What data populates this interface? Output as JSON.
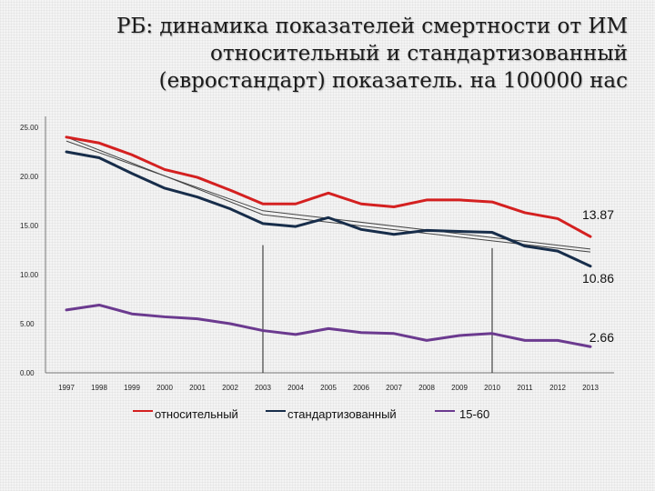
{
  "title_lines": [
    "РБ: динамика показателей смертности от ИМ",
    "относительный и стандартизованный",
    "(евростандарт) показатель. на 100000 нас"
  ],
  "chart_data": {
    "type": "line",
    "title": "РБ: динамика показателей смертности от ИМ относительный и стандартизованный (евростандарт) показатель. на 100000 нас",
    "xlabel": "",
    "ylabel": "",
    "ylim": [
      0,
      25
    ],
    "y_ticks": [
      "0.00",
      "5.00",
      "10.00",
      "15.00",
      "20.00",
      "25.00"
    ],
    "categories": [
      "1997",
      "1998",
      "1999",
      "2000",
      "2001",
      "2002",
      "2003",
      "2004",
      "2005",
      "2006",
      "2007",
      "2008",
      "2009",
      "2010",
      "2011",
      "2012",
      "2013"
    ],
    "series": [
      {
        "name": "относительный",
        "color": "#d42020",
        "values": [
          24.0,
          23.4,
          22.2,
          20.7,
          19.9,
          18.6,
          17.2,
          17.2,
          18.3,
          17.2,
          16.9,
          17.6,
          17.6,
          17.4,
          16.3,
          15.7,
          13.87
        ]
      },
      {
        "name": "стандартизованный",
        "color": "#172d4a",
        "values": [
          22.5,
          21.9,
          20.3,
          18.8,
          17.9,
          16.7,
          15.2,
          14.9,
          15.8,
          14.6,
          14.1,
          14.5,
          14.4,
          14.3,
          12.9,
          12.4,
          10.86
        ]
      },
      {
        "name": "15-60",
        "color": "#6b3a8f",
        "values": [
          6.4,
          6.9,
          6.0,
          5.7,
          5.5,
          5.0,
          4.3,
          3.9,
          4.5,
          4.1,
          4.0,
          3.3,
          3.8,
          4.0,
          3.3,
          3.3,
          2.66
        ]
      }
    ],
    "trend_lines": [
      {
        "color": "#444444",
        "from": [
          0,
          24.0
        ],
        "via": [
          6,
          16.1
        ],
        "to": [
          16,
          12.3
        ]
      },
      {
        "color": "#444444",
        "from": [
          0,
          23.6
        ],
        "via": [
          6,
          16.5
        ],
        "to": [
          16,
          12.6
        ]
      }
    ],
    "vertical_markers": [
      {
        "category_index": 6,
        "from": 0,
        "to": 13.0
      },
      {
        "category_index": 13,
        "from": 0,
        "to": 12.7
      }
    ],
    "end_labels": [
      "13.87",
      "10.86",
      "2.66"
    ],
    "legend": {
      "placement": "bottom"
    },
    "grid": false
  }
}
